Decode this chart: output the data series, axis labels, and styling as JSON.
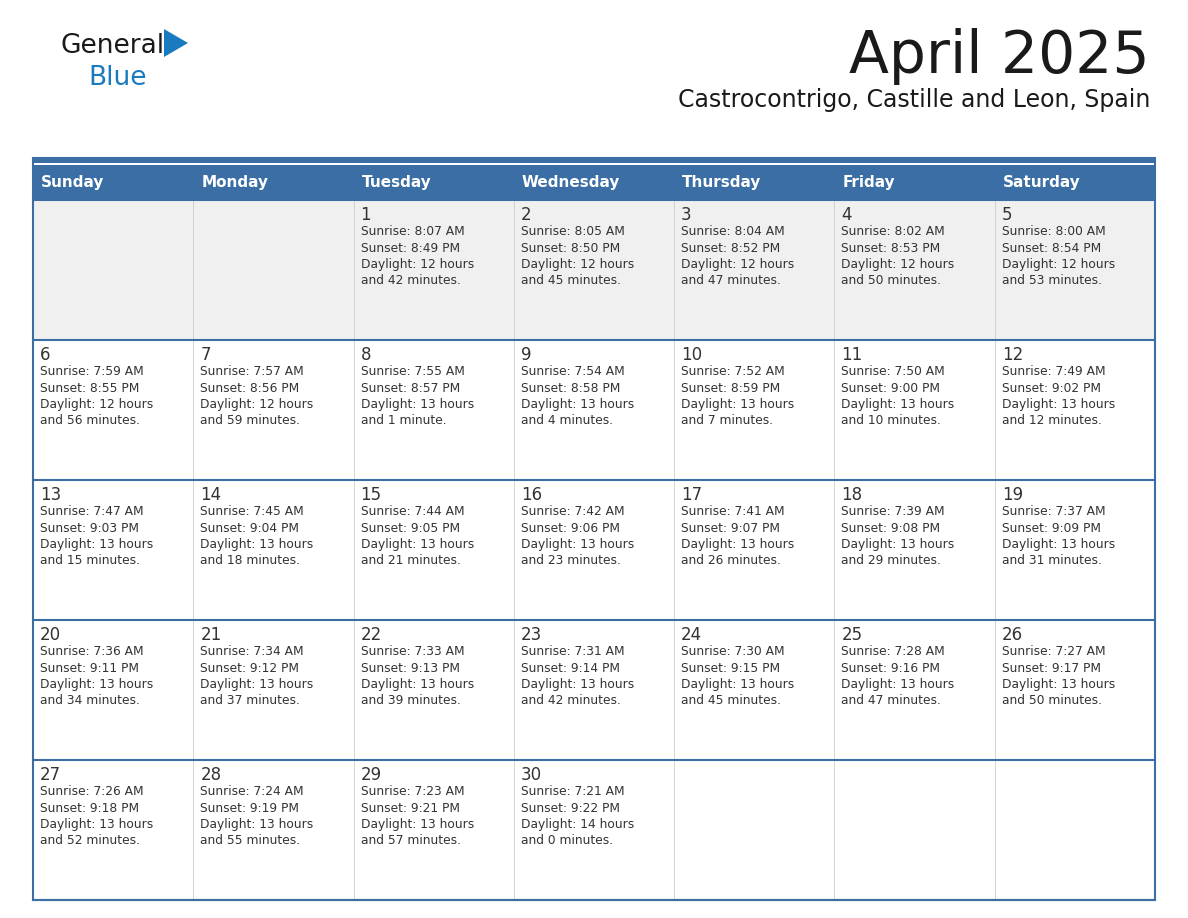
{
  "title": "April 2025",
  "subtitle": "Castrocontrigo, Castille and Leon, Spain",
  "days_of_week": [
    "Sunday",
    "Monday",
    "Tuesday",
    "Wednesday",
    "Thursday",
    "Friday",
    "Saturday"
  ],
  "header_bg": "#3a6ea5",
  "header_text_color": "#ffffff",
  "row_bg_light": "#f0f0f0",
  "row_bg_white": "#ffffff",
  "cell_text_color": "#333333",
  "grid_line_color": "#3a6ea5",
  "title_color": "#1a1a1a",
  "subtitle_color": "#1a1a1a",
  "logo_black": "#1a1a1a",
  "blue_color": "#1a7abf",
  "weeks": [
    [
      {
        "day": "",
        "sunrise": "",
        "sunset": "",
        "daylight": ""
      },
      {
        "day": "",
        "sunrise": "",
        "sunset": "",
        "daylight": ""
      },
      {
        "day": "1",
        "sunrise": "Sunrise: 8:07 AM",
        "sunset": "Sunset: 8:49 PM",
        "daylight": "Daylight: 12 hours\nand 42 minutes."
      },
      {
        "day": "2",
        "sunrise": "Sunrise: 8:05 AM",
        "sunset": "Sunset: 8:50 PM",
        "daylight": "Daylight: 12 hours\nand 45 minutes."
      },
      {
        "day": "3",
        "sunrise": "Sunrise: 8:04 AM",
        "sunset": "Sunset: 8:52 PM",
        "daylight": "Daylight: 12 hours\nand 47 minutes."
      },
      {
        "day": "4",
        "sunrise": "Sunrise: 8:02 AM",
        "sunset": "Sunset: 8:53 PM",
        "daylight": "Daylight: 12 hours\nand 50 minutes."
      },
      {
        "day": "5",
        "sunrise": "Sunrise: 8:00 AM",
        "sunset": "Sunset: 8:54 PM",
        "daylight": "Daylight: 12 hours\nand 53 minutes."
      }
    ],
    [
      {
        "day": "6",
        "sunrise": "Sunrise: 7:59 AM",
        "sunset": "Sunset: 8:55 PM",
        "daylight": "Daylight: 12 hours\nand 56 minutes."
      },
      {
        "day": "7",
        "sunrise": "Sunrise: 7:57 AM",
        "sunset": "Sunset: 8:56 PM",
        "daylight": "Daylight: 12 hours\nand 59 minutes."
      },
      {
        "day": "8",
        "sunrise": "Sunrise: 7:55 AM",
        "sunset": "Sunset: 8:57 PM",
        "daylight": "Daylight: 13 hours\nand 1 minute."
      },
      {
        "day": "9",
        "sunrise": "Sunrise: 7:54 AM",
        "sunset": "Sunset: 8:58 PM",
        "daylight": "Daylight: 13 hours\nand 4 minutes."
      },
      {
        "day": "10",
        "sunrise": "Sunrise: 7:52 AM",
        "sunset": "Sunset: 8:59 PM",
        "daylight": "Daylight: 13 hours\nand 7 minutes."
      },
      {
        "day": "11",
        "sunrise": "Sunrise: 7:50 AM",
        "sunset": "Sunset: 9:00 PM",
        "daylight": "Daylight: 13 hours\nand 10 minutes."
      },
      {
        "day": "12",
        "sunrise": "Sunrise: 7:49 AM",
        "sunset": "Sunset: 9:02 PM",
        "daylight": "Daylight: 13 hours\nand 12 minutes."
      }
    ],
    [
      {
        "day": "13",
        "sunrise": "Sunrise: 7:47 AM",
        "sunset": "Sunset: 9:03 PM",
        "daylight": "Daylight: 13 hours\nand 15 minutes."
      },
      {
        "day": "14",
        "sunrise": "Sunrise: 7:45 AM",
        "sunset": "Sunset: 9:04 PM",
        "daylight": "Daylight: 13 hours\nand 18 minutes."
      },
      {
        "day": "15",
        "sunrise": "Sunrise: 7:44 AM",
        "sunset": "Sunset: 9:05 PM",
        "daylight": "Daylight: 13 hours\nand 21 minutes."
      },
      {
        "day": "16",
        "sunrise": "Sunrise: 7:42 AM",
        "sunset": "Sunset: 9:06 PM",
        "daylight": "Daylight: 13 hours\nand 23 minutes."
      },
      {
        "day": "17",
        "sunrise": "Sunrise: 7:41 AM",
        "sunset": "Sunset: 9:07 PM",
        "daylight": "Daylight: 13 hours\nand 26 minutes."
      },
      {
        "day": "18",
        "sunrise": "Sunrise: 7:39 AM",
        "sunset": "Sunset: 9:08 PM",
        "daylight": "Daylight: 13 hours\nand 29 minutes."
      },
      {
        "day": "19",
        "sunrise": "Sunrise: 7:37 AM",
        "sunset": "Sunset: 9:09 PM",
        "daylight": "Daylight: 13 hours\nand 31 minutes."
      }
    ],
    [
      {
        "day": "20",
        "sunrise": "Sunrise: 7:36 AM",
        "sunset": "Sunset: 9:11 PM",
        "daylight": "Daylight: 13 hours\nand 34 minutes."
      },
      {
        "day": "21",
        "sunrise": "Sunrise: 7:34 AM",
        "sunset": "Sunset: 9:12 PM",
        "daylight": "Daylight: 13 hours\nand 37 minutes."
      },
      {
        "day": "22",
        "sunrise": "Sunrise: 7:33 AM",
        "sunset": "Sunset: 9:13 PM",
        "daylight": "Daylight: 13 hours\nand 39 minutes."
      },
      {
        "day": "23",
        "sunrise": "Sunrise: 7:31 AM",
        "sunset": "Sunset: 9:14 PM",
        "daylight": "Daylight: 13 hours\nand 42 minutes."
      },
      {
        "day": "24",
        "sunrise": "Sunrise: 7:30 AM",
        "sunset": "Sunset: 9:15 PM",
        "daylight": "Daylight: 13 hours\nand 45 minutes."
      },
      {
        "day": "25",
        "sunrise": "Sunrise: 7:28 AM",
        "sunset": "Sunset: 9:16 PM",
        "daylight": "Daylight: 13 hours\nand 47 minutes."
      },
      {
        "day": "26",
        "sunrise": "Sunrise: 7:27 AM",
        "sunset": "Sunset: 9:17 PM",
        "daylight": "Daylight: 13 hours\nand 50 minutes."
      }
    ],
    [
      {
        "day": "27",
        "sunrise": "Sunrise: 7:26 AM",
        "sunset": "Sunset: 9:18 PM",
        "daylight": "Daylight: 13 hours\nand 52 minutes."
      },
      {
        "day": "28",
        "sunrise": "Sunrise: 7:24 AM",
        "sunset": "Sunset: 9:19 PM",
        "daylight": "Daylight: 13 hours\nand 55 minutes."
      },
      {
        "day": "29",
        "sunrise": "Sunrise: 7:23 AM",
        "sunset": "Sunset: 9:21 PM",
        "daylight": "Daylight: 13 hours\nand 57 minutes."
      },
      {
        "day": "30",
        "sunrise": "Sunrise: 7:21 AM",
        "sunset": "Sunset: 9:22 PM",
        "daylight": "Daylight: 14 hours\nand 0 minutes."
      },
      {
        "day": "",
        "sunrise": "",
        "sunset": "",
        "daylight": ""
      },
      {
        "day": "",
        "sunrise": "",
        "sunset": "",
        "daylight": ""
      },
      {
        "day": "",
        "sunrise": "",
        "sunset": "",
        "daylight": ""
      }
    ]
  ]
}
